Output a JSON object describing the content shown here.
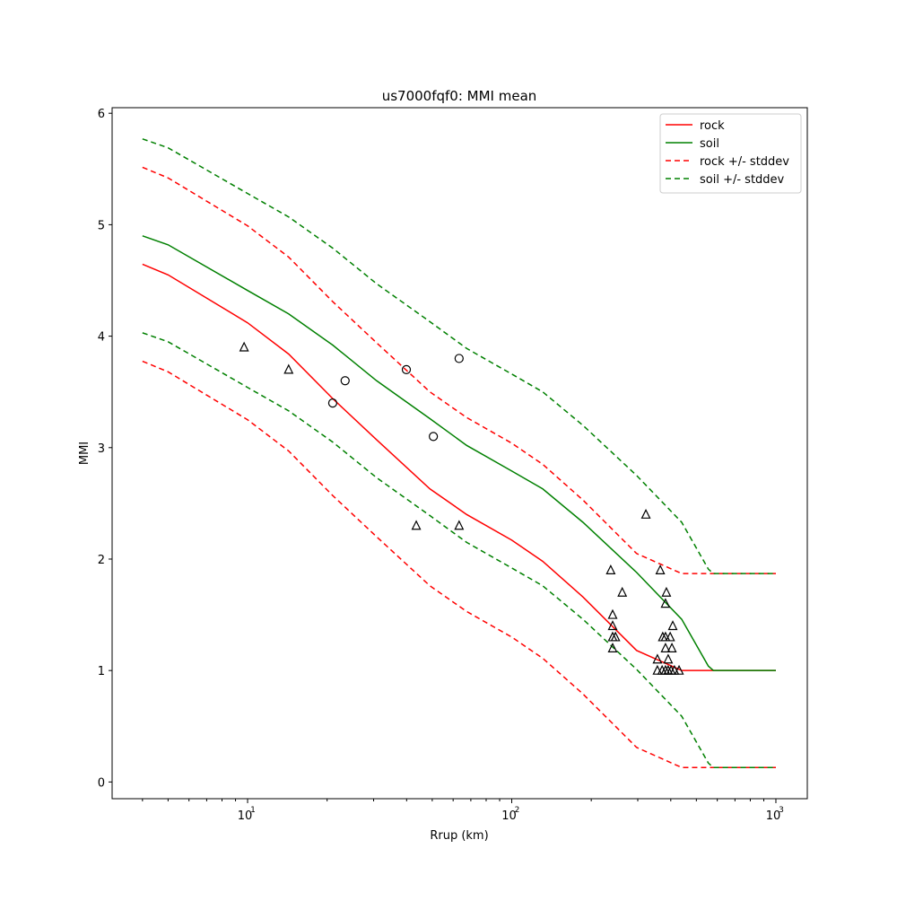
{
  "chart_data": {
    "type": "line",
    "title": "us7000fqf0: MMI mean",
    "xlabel": "Rrup (km)",
    "ylabel": "MMI",
    "xscale": "log",
    "xlim": [
      3.07,
      1315
    ],
    "ylim": [
      -0.15,
      6.05
    ],
    "yticks": [
      0,
      1,
      2,
      3,
      4,
      5,
      6
    ],
    "xticks": [
      10,
      100,
      1000
    ],
    "xtick_labels": [
      "10",
      "1",
      "10",
      "2",
      "10",
      "3"
    ],
    "stddev": 0.87,
    "legend_position": "top-right",
    "legend": [
      "rock",
      "soil",
      "rock +/- stddev",
      "soil +/- stddev"
    ],
    "series": [
      {
        "name": "rock",
        "color": "#ff0000",
        "x": [
          4.0,
          5.0,
          10,
          14.3,
          21,
          30.8,
          49,
          67.5,
          100,
          131,
          186,
          297,
          440,
          1000
        ],
        "y": [
          4.645,
          4.55,
          4.12,
          3.84,
          3.44,
          3.07,
          2.63,
          2.4,
          2.17,
          1.98,
          1.66,
          1.18,
          1.0,
          1.0
        ]
      },
      {
        "name": "soil",
        "color": "#008000",
        "x": [
          4.0,
          5.0,
          10,
          14.3,
          21,
          30.8,
          49,
          67.5,
          100,
          131,
          186,
          297,
          440,
          555,
          580,
          1000
        ],
        "y": [
          4.9,
          4.82,
          4.41,
          4.2,
          3.92,
          3.6,
          3.26,
          3.02,
          2.79,
          2.63,
          2.33,
          1.88,
          1.46,
          1.04,
          1.0,
          1.0
        ]
      }
    ],
    "observations": {
      "triangles": [
        [
          9.7,
          3.9
        ],
        [
          14.3,
          3.7
        ],
        [
          43.5,
          2.3
        ],
        [
          63.2,
          2.3
        ],
        [
          322,
          2.4
        ],
        [
          237,
          1.9
        ],
        [
          365,
          1.9
        ],
        [
          262,
          1.7
        ],
        [
          385,
          1.7
        ],
        [
          382,
          1.6
        ],
        [
          241,
          1.5
        ],
        [
          241,
          1.4
        ],
        [
          407,
          1.4
        ],
        [
          241,
          1.3
        ],
        [
          247,
          1.3
        ],
        [
          373,
          1.3
        ],
        [
          382,
          1.3
        ],
        [
          398,
          1.3
        ],
        [
          241,
          1.2
        ],
        [
          382,
          1.2
        ],
        [
          404,
          1.2
        ],
        [
          356,
          1.1
        ],
        [
          391,
          1.1
        ],
        [
          356,
          1.0
        ],
        [
          371,
          1.0
        ],
        [
          382,
          1.0
        ],
        [
          391,
          1.0
        ],
        [
          401,
          1.0
        ],
        [
          413,
          1.0
        ],
        [
          430,
          1.0
        ]
      ],
      "circles": [
        [
          21.0,
          3.4
        ],
        [
          23.4,
          3.6
        ],
        [
          39.9,
          3.7
        ],
        [
          50.5,
          3.1
        ],
        [
          63.2,
          3.8
        ]
      ]
    }
  }
}
